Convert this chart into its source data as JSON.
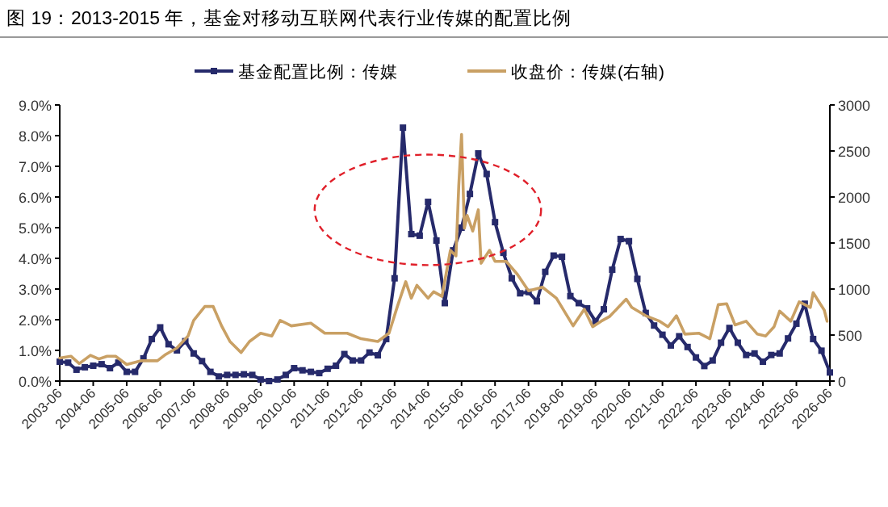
{
  "chart_data": {
    "type": "line",
    "title": "图 19：2013-2015 年，基金对移动互联网代表行业传媒的配置比例",
    "legend": "top",
    "xlim": [
      "2003-06",
      "2026-06"
    ],
    "xticks": [
      "2003-06",
      "2004-06",
      "2005-06",
      "2006-06",
      "2007-06",
      "2008-06",
      "2009-06",
      "2010-06",
      "2011-06",
      "2012-06",
      "2013-06",
      "2014-06",
      "2015-06",
      "2016-06",
      "2017-06",
      "2018-06",
      "2019-06",
      "2020-06",
      "2021-06",
      "2022-06",
      "2023-06",
      "2024-06",
      "2025-06",
      "2026-06"
    ],
    "ylim": [
      0,
      9
    ],
    "yticks": [
      {
        "value": 0,
        "label": "0.0%"
      },
      {
        "value": 1,
        "label": "1.0%"
      },
      {
        "value": 2,
        "label": "2.0%"
      },
      {
        "value": 3,
        "label": "3.0%"
      },
      {
        "value": 4,
        "label": "4.0%"
      },
      {
        "value": 5,
        "label": "5.0%"
      },
      {
        "value": 6,
        "label": "6.0%"
      },
      {
        "value": 7,
        "label": "7.0%"
      },
      {
        "value": 8,
        "label": "8.0%"
      },
      {
        "value": 9,
        "label": "9.0%"
      }
    ],
    "y2lim": [
      0,
      3000
    ],
    "y2ticks": [
      0,
      500,
      1000,
      1500,
      2000,
      2500,
      3000
    ],
    "series": [
      {
        "name": "基金配置比例：传媒",
        "color": "#262a6b",
        "marker": "square",
        "x": [
          "2003-06",
          "2003-09",
          "2003-12",
          "2004-03",
          "2004-06",
          "2004-09",
          "2004-12",
          "2005-03",
          "2005-06",
          "2005-09",
          "2005-12",
          "2006-03",
          "2006-06",
          "2006-09",
          "2006-12",
          "2007-03",
          "2007-06",
          "2007-09",
          "2007-12",
          "2008-03",
          "2008-06",
          "2008-09",
          "2008-12",
          "2009-03",
          "2009-06",
          "2009-09",
          "2009-12",
          "2010-03",
          "2010-06",
          "2010-09",
          "2010-12",
          "2011-03",
          "2011-06",
          "2011-09",
          "2011-12",
          "2012-03",
          "2012-06",
          "2012-09",
          "2012-12",
          "2013-03",
          "2013-06",
          "2013-09",
          "2013-12",
          "2014-03",
          "2014-06",
          "2014-09",
          "2014-12",
          "2015-03",
          "2015-06",
          "2015-09",
          "2015-12",
          "2016-03",
          "2016-06",
          "2016-09",
          "2016-12",
          "2017-03",
          "2017-06",
          "2017-09",
          "2017-12",
          "2018-03",
          "2018-06",
          "2018-09",
          "2018-12",
          "2019-03",
          "2019-06",
          "2019-09",
          "2019-12",
          "2020-03",
          "2020-06",
          "2020-09",
          "2020-12",
          "2021-03",
          "2021-06",
          "2021-09",
          "2021-12",
          "2022-03",
          "2022-06",
          "2022-09",
          "2022-12",
          "2023-03",
          "2023-06",
          "2023-09",
          "2023-12",
          "2024-03",
          "2024-06",
          "2024-09",
          "2024-12",
          "2025-03",
          "2025-06",
          "2025-09",
          "2025-12",
          "2026-03",
          "2026-06"
        ],
        "values": [
          0.63,
          0.6,
          0.37,
          0.45,
          0.5,
          0.55,
          0.42,
          0.6,
          0.3,
          0.3,
          0.74,
          1.37,
          1.75,
          1.2,
          1.0,
          1.3,
          0.9,
          0.65,
          0.3,
          0.15,
          0.2,
          0.2,
          0.22,
          0.2,
          0.05,
          0.0,
          0.05,
          0.2,
          0.42,
          0.35,
          0.3,
          0.26,
          0.4,
          0.5,
          0.88,
          0.67,
          0.67,
          0.93,
          0.84,
          1.37,
          3.35,
          8.26,
          4.79,
          4.74,
          5.84,
          4.58,
          2.54,
          4.26,
          5.0,
          6.1,
          7.42,
          6.75,
          5.18,
          4.18,
          3.35,
          2.86,
          2.9,
          2.6,
          3.56,
          4.09,
          4.05,
          2.77,
          2.54,
          2.37,
          1.95,
          2.34,
          3.63,
          4.63,
          4.56,
          3.33,
          2.22,
          1.81,
          1.51,
          1.16,
          1.46,
          1.11,
          0.77,
          0.49,
          0.67,
          1.25,
          1.73,
          1.25,
          0.85,
          0.9,
          0.63,
          0.85,
          0.9,
          1.39,
          1.87,
          2.52,
          1.37,
          0.99,
          0.28
        ]
      },
      {
        "name": "收盘价：传媒(右轴)",
        "color": "#c9a064",
        "axis": "y2",
        "marker": "none",
        "x": [
          "2003-06",
          "2003-10",
          "2004-01",
          "2004-05",
          "2004-08",
          "2004-11",
          "2005-02",
          "2005-06",
          "2005-11",
          "2006-05",
          "2006-08",
          "2006-12",
          "2007-04",
          "2007-06",
          "2007-10",
          "2008-01",
          "2008-04",
          "2008-07",
          "2008-11",
          "2009-02",
          "2009-06",
          "2009-10",
          "2010-01",
          "2010-05",
          "2010-12",
          "2011-05",
          "2012-01",
          "2012-06",
          "2012-12",
          "2013-04",
          "2013-07",
          "2013-10",
          "2013-12",
          "2014-02",
          "2014-06",
          "2014-08",
          "2014-11",
          "2015-02",
          "2015-04",
          "2015-05",
          "2015-06",
          "2015-07",
          "2015-08",
          "2015-10",
          "2015-12",
          "2016-01",
          "2016-04",
          "2016-06",
          "2016-10",
          "2017-02",
          "2017-06",
          "2017-11",
          "2018-04",
          "2018-10",
          "2019-02",
          "2019-05",
          "2019-08",
          "2019-11",
          "2020-05",
          "2020-07",
          "2020-12",
          "2021-05",
          "2021-08",
          "2021-11",
          "2022-02",
          "2022-07",
          "2022-11",
          "2023-02",
          "2023-05",
          "2023-08",
          "2023-12",
          "2024-04",
          "2024-07",
          "2024-10",
          "2024-12",
          "2025-04",
          "2025-07",
          "2025-11",
          "2025-12",
          "2026-04",
          "2026-05"
        ],
        "values": [
          250,
          270,
          190,
          280,
          240,
          270,
          270,
          180,
          220,
          220,
          290,
          360,
          490,
          660,
          810,
          810,
          600,
          430,
          310,
          430,
          520,
          490,
          660,
          600,
          630,
          520,
          520,
          460,
          430,
          520,
          810,
          1080,
          900,
          1040,
          900,
          970,
          920,
          1420,
          1360,
          2120,
          2680,
          1660,
          1800,
          1630,
          1860,
          1280,
          1420,
          1300,
          1300,
          1160,
          980,
          1020,
          900,
          600,
          780,
          590,
          650,
          700,
          890,
          800,
          710,
          650,
          590,
          710,
          510,
          520,
          460,
          830,
          840,
          610,
          650,
          510,
          490,
          590,
          760,
          650,
          860,
          800,
          960,
          770,
          650
        ]
      }
    ]
  }
}
